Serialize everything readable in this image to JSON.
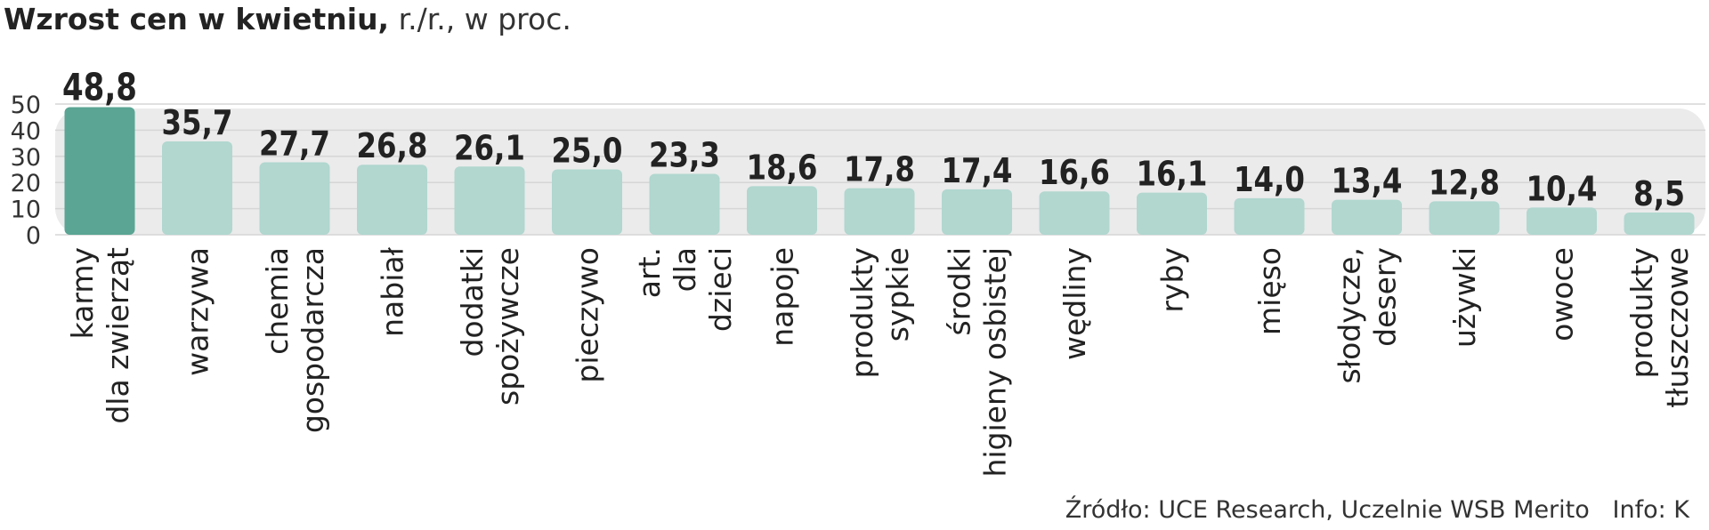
{
  "title": {
    "main": "Wzrost cen w kwietniu,",
    "sub": " r./r., w proc."
  },
  "source": {
    "text": "Źródło: UCE Research, Uczelnie WSB Merito",
    "info": "Info: K"
  },
  "colors": {
    "highlight": "#5aa594",
    "bar": "#b1d7cf",
    "band": "#ebebeb",
    "grid": "#d6d6d6",
    "label": "#222222"
  },
  "chart_data": {
    "type": "bar",
    "title": "Wzrost cen w kwietniu, r./r., w proc.",
    "xlabel": "",
    "ylabel": "",
    "ylim": [
      0,
      50
    ],
    "yticks": [
      0,
      10,
      20,
      30,
      40,
      50
    ],
    "grid": true,
    "categories": [
      [
        "karmy",
        "dla zwierząt"
      ],
      [
        "warzywa"
      ],
      [
        "chemia",
        "gospodarcza"
      ],
      [
        "nabiał"
      ],
      [
        "dodatki",
        "spożywcze"
      ],
      [
        "pieczywo"
      ],
      [
        "art.",
        "dla",
        "dzieci"
      ],
      [
        "napoje"
      ],
      [
        "produkty",
        "sypkie"
      ],
      [
        "środki",
        "higieny osbistej"
      ],
      [
        "wędliny"
      ],
      [
        "ryby"
      ],
      [
        "mięso"
      ],
      [
        "słodycze,",
        "desery"
      ],
      [
        "używki"
      ],
      [
        "owoce"
      ],
      [
        "produkty",
        "tłuszczowe"
      ]
    ],
    "values": [
      48.8,
      35.7,
      27.7,
      26.8,
      26.1,
      25.0,
      23.3,
      18.6,
      17.8,
      17.4,
      16.6,
      16.1,
      14.0,
      13.4,
      12.8,
      10.4,
      8.5
    ],
    "data_labels": [
      "48,8",
      "35,7",
      "27,7",
      "26,8",
      "26,1",
      "25,0",
      "23,3",
      "18,6",
      "17,8",
      "17,4",
      "16,6",
      "16,1",
      "14,0",
      "13,4",
      "12,8",
      "10,4",
      "8,5"
    ],
    "highlight_index": 0
  }
}
